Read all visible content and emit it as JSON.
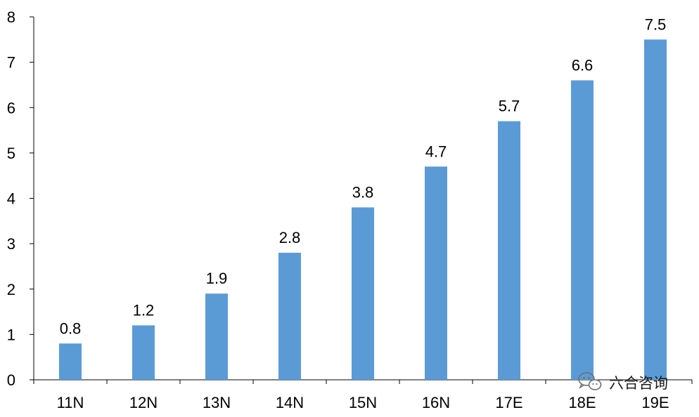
{
  "chart_data": {
    "type": "bar",
    "categories": [
      "11N",
      "12N",
      "13N",
      "14N",
      "15N",
      "16N",
      "17E",
      "18E",
      "19E"
    ],
    "values": [
      0.8,
      1.2,
      1.9,
      2.8,
      3.8,
      4.7,
      5.7,
      6.6,
      7.5
    ],
    "data_labels": [
      "0.8",
      "1.2",
      "1.9",
      "2.8",
      "3.8",
      "4.7",
      "5.7",
      "6.6",
      "7.5"
    ],
    "yticks": [
      "0",
      "1",
      "2",
      "3",
      "4",
      "5",
      "6",
      "7",
      "8"
    ],
    "ylim": [
      0,
      8
    ],
    "title": "",
    "xlabel": "",
    "ylabel": "",
    "grid": false,
    "legend": "none",
    "bar_color": "#5B9BD5"
  },
  "watermark": {
    "text": "六合咨询",
    "icon": "wechat-icon"
  }
}
